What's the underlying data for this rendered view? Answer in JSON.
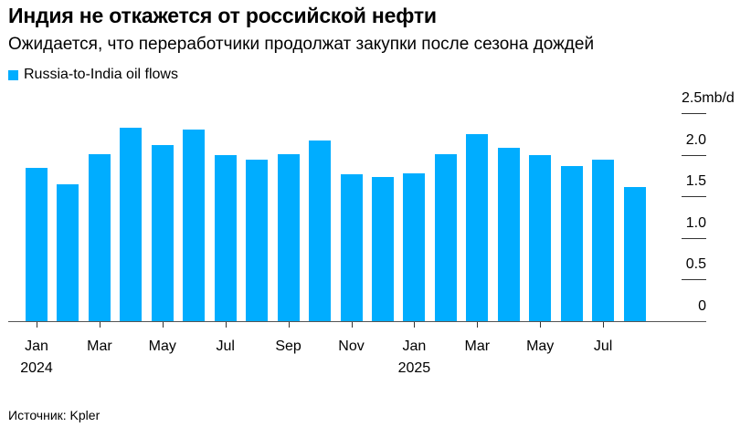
{
  "header": {
    "title": "Индия не откажется от российской нефти",
    "subtitle": "Ожидается, что переработчики продолжат закупки после сезона дождей"
  },
  "legend": {
    "items": [
      {
        "label": "Russia-to-India oil flows",
        "color": "#00adff"
      }
    ]
  },
  "footer": {
    "source": "Источник: Kpler"
  },
  "y_axis": {
    "ticks": [
      {
        "label": "2.5mb/d",
        "value": 2.5
      },
      {
        "label": "2.0",
        "value": 2.0
      },
      {
        "label": "1.5",
        "value": 1.5
      },
      {
        "label": "1.0",
        "value": 1.0
      },
      {
        "label": "0.5",
        "value": 0.5
      },
      {
        "label": "0",
        "value": 0
      }
    ]
  },
  "x_axis": {
    "ticks": [
      {
        "label": "Jan",
        "index": 0,
        "year": "2024"
      },
      {
        "label": "Mar",
        "index": 2
      },
      {
        "label": "May",
        "index": 4
      },
      {
        "label": "Jul",
        "index": 6
      },
      {
        "label": "Sep",
        "index": 8
      },
      {
        "label": "Nov",
        "index": 10
      },
      {
        "label": "Jan",
        "index": 12,
        "year": "2025"
      },
      {
        "label": "Mar",
        "index": 14
      },
      {
        "label": "May",
        "index": 16
      },
      {
        "label": "Jul",
        "index": 18
      }
    ]
  },
  "chart_data": {
    "type": "bar",
    "title": "Индия не откажется от российской нефти",
    "subtitle": "Ожидается, что переработчики продолжат закупки после сезона дождей",
    "xlabel": "",
    "ylabel": "mb/d",
    "ylim": [
      0,
      2.5
    ],
    "yticks": [
      0,
      0.5,
      1.0,
      1.5,
      2.0,
      2.5
    ],
    "grid": true,
    "legend_position": "top-left",
    "categories": [
      "Jan 2024",
      "Feb 2024",
      "Mar 2024",
      "Apr 2024",
      "May 2024",
      "Jun 2024",
      "Jul 2024",
      "Aug 2024",
      "Sep 2024",
      "Oct 2024",
      "Nov 2024",
      "Dec 2024",
      "Jan 2025",
      "Feb 2025",
      "Mar 2025",
      "Apr 2025",
      "May 2025",
      "Jun 2025",
      "Jul 2025",
      "Aug 2025"
    ],
    "series": [
      {
        "name": "Russia-to-India oil flows",
        "color": "#00adff",
        "values": [
          1.84,
          1.64,
          2.01,
          2.32,
          2.12,
          2.3,
          2.0,
          1.94,
          2.01,
          2.17,
          1.77,
          1.73,
          1.78,
          2.01,
          2.25,
          2.08,
          2.0,
          1.86,
          1.94,
          1.61
        ]
      }
    ],
    "source": "Источник: Kpler"
  }
}
